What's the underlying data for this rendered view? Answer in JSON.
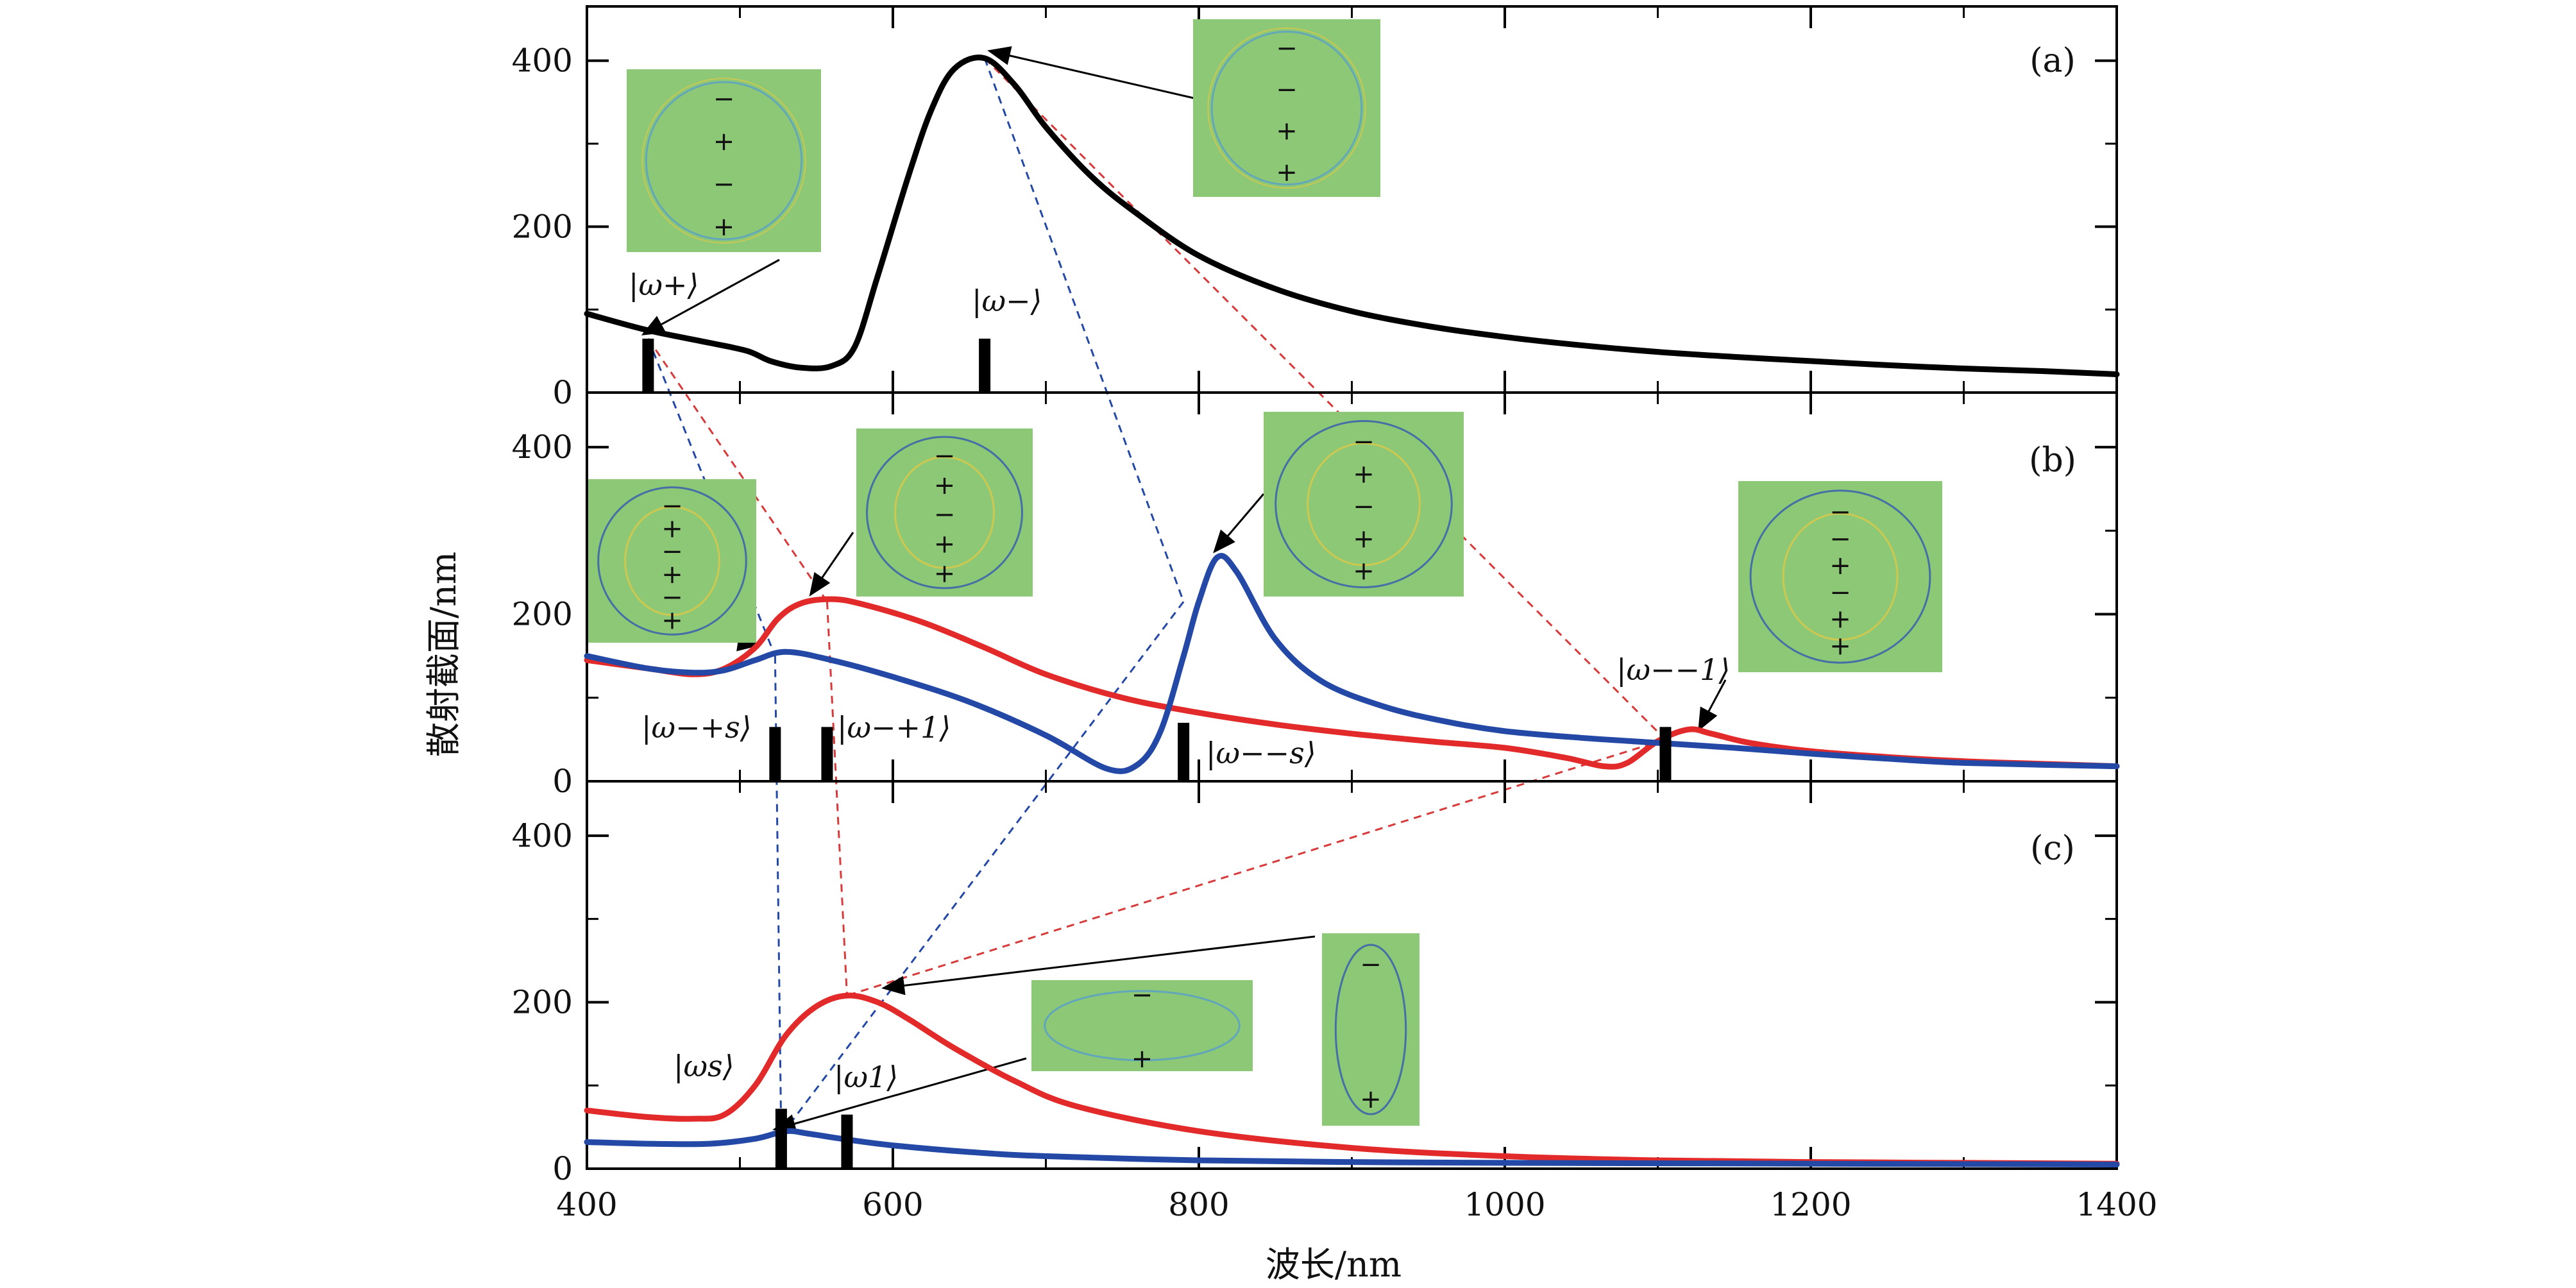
{
  "chart_data": {
    "type": "line",
    "xlabel": "波长/nm",
    "ylabel": "散射截面/nm",
    "xlim": [
      400,
      1400
    ],
    "ylim": [
      0,
      450
    ],
    "x_ticks": [
      "400",
      "600",
      "800",
      "1000",
      "1200",
      "1400"
    ],
    "y_ticks": [
      "0",
      "200",
      "400"
    ],
    "colors": {
      "black": "#000000",
      "red": "#e32a2a",
      "blue": "#2348a6",
      "inset": "#8cc876"
    },
    "panels": [
      {
        "label": "(a)",
        "series": [
          {
            "color": "black",
            "points": [
              [
                400,
                95
              ],
              [
                440,
                75
              ],
              [
                480,
                60
              ],
              [
                505,
                50
              ],
              [
                520,
                38
              ],
              [
                540,
                30
              ],
              [
                560,
                32
              ],
              [
                575,
                55
              ],
              [
                590,
                140
              ],
              [
                610,
                260
              ],
              [
                625,
                340
              ],
              [
                640,
                390
              ],
              [
                660,
                403
              ],
              [
                680,
                370
              ],
              [
                700,
                320
              ],
              [
                730,
                260
              ],
              [
                760,
                215
              ],
              [
                800,
                165
              ],
              [
                850,
                125
              ],
              [
                900,
                98
              ],
              [
                950,
                80
              ],
              [
                1000,
                67
              ],
              [
                1050,
                57
              ],
              [
                1100,
                49
              ],
              [
                1150,
                43
              ],
              [
                1200,
                38
              ],
              [
                1250,
                33
              ],
              [
                1300,
                29
              ],
              [
                1350,
                26
              ],
              [
                1400,
                22
              ]
            ]
          }
        ],
        "states": [
          {
            "label": "|ω+⟩",
            "x": 440,
            "height": 65
          },
          {
            "label": "|ω−⟩",
            "x": 660,
            "height": 65
          }
        ],
        "insets": [
          {
            "charges": [
              "−",
              "+",
              "−",
              "+"
            ]
          },
          {
            "charges": [
              "−",
              "−",
              "+",
              "+"
            ]
          }
        ]
      },
      {
        "label": "(b)",
        "series": [
          {
            "color": "red",
            "points": [
              [
                400,
                145
              ],
              [
                440,
                135
              ],
              [
                470,
                128
              ],
              [
                490,
                135
              ],
              [
                510,
                160
              ],
              [
                525,
                195
              ],
              [
                540,
                213
              ],
              [
                560,
                218
              ],
              [
                580,
                212
              ],
              [
                620,
                190
              ],
              [
                660,
                160
              ],
              [
                700,
                128
              ],
              [
                750,
                100
              ],
              [
                800,
                82
              ],
              [
                850,
                68
              ],
              [
                900,
                57
              ],
              [
                950,
                48
              ],
              [
                1000,
                40
              ],
              [
                1040,
                28
              ],
              [
                1065,
                18
              ],
              [
                1080,
                22
              ],
              [
                1100,
                48
              ],
              [
                1120,
                62
              ],
              [
                1135,
                57
              ],
              [
                1160,
                46
              ],
              [
                1200,
                36
              ],
              [
                1250,
                29
              ],
              [
                1300,
                24
              ],
              [
                1350,
                21
              ],
              [
                1400,
                18
              ]
            ]
          },
          {
            "color": "blue",
            "points": [
              [
                400,
                150
              ],
              [
                440,
                135
              ],
              [
                470,
                130
              ],
              [
                490,
                133
              ],
              [
                510,
                145
              ],
              [
                530,
                155
              ],
              [
                560,
                145
              ],
              [
                600,
                125
              ],
              [
                650,
                95
              ],
              [
                700,
                55
              ],
              [
                740,
                15
              ],
              [
                760,
                20
              ],
              [
                775,
                60
              ],
              [
                790,
                150
              ],
              [
                800,
                215
              ],
              [
                812,
                268
              ],
              [
                825,
                250
              ],
              [
                850,
                170
              ],
              [
                880,
                120
              ],
              [
                920,
                90
              ],
              [
                960,
                72
              ],
              [
                1000,
                60
              ],
              [
                1050,
                52
              ],
              [
                1100,
                46
              ],
              [
                1150,
                40
              ],
              [
                1200,
                33
              ],
              [
                1250,
                27
              ],
              [
                1300,
                22
              ],
              [
                1400,
                18
              ]
            ]
          }
        ],
        "states": [
          {
            "label": "|ω−+s⟩",
            "x": 523,
            "height": 65
          },
          {
            "label": "|ω−+1⟩",
            "x": 557,
            "height": 65
          },
          {
            "label": "|ω−−s⟩",
            "x": 790,
            "height": 70
          },
          {
            "label": "|ω−−1⟩",
            "x": 1105,
            "height": 65
          }
        ],
        "insets": [
          {
            "charges": [
              "−",
              "+",
              "−",
              "+",
              "−",
              "+"
            ]
          },
          {
            "charges": [
              "−",
              "+",
              "−",
              "+",
              "+"
            ]
          },
          {
            "charges": [
              "−",
              "+",
              "−",
              "+",
              "+"
            ]
          },
          {
            "charges": [
              "−",
              "−",
              "+",
              "−",
              "+",
              "+"
            ]
          }
        ]
      },
      {
        "label": "(c)",
        "series": [
          {
            "color": "red",
            "points": [
              [
                400,
                70
              ],
              [
                440,
                62
              ],
              [
                470,
                60
              ],
              [
                490,
                65
              ],
              [
                510,
                100
              ],
              [
                530,
                160
              ],
              [
                550,
                195
              ],
              [
                570,
                208
              ],
              [
                590,
                200
              ],
              [
                610,
                180
              ],
              [
                640,
                145
              ],
              [
                680,
                105
              ],
              [
                720,
                75
              ],
              [
                800,
                45
              ],
              [
                900,
                25
              ],
              [
                1000,
                15
              ],
              [
                1100,
                10
              ],
              [
                1200,
                8
              ],
              [
                1300,
                7
              ],
              [
                1400,
                6
              ]
            ]
          },
          {
            "color": "blue",
            "points": [
              [
                400,
                32
              ],
              [
                440,
                30
              ],
              [
                480,
                30
              ],
              [
                510,
                36
              ],
              [
                530,
                45
              ],
              [
                545,
                42
              ],
              [
                570,
                35
              ],
              [
                600,
                28
              ],
              [
                650,
                20
              ],
              [
                700,
                15
              ],
              [
                800,
                10
              ],
              [
                900,
                8
              ],
              [
                1000,
                7
              ],
              [
                1200,
                6
              ],
              [
                1400,
                5
              ]
            ]
          }
        ],
        "states": [
          {
            "label": "|ωs⟩",
            "x": 527,
            "height": 72
          },
          {
            "label": "|ω1⟩",
            "x": 570,
            "height": 65
          }
        ],
        "insets": [
          {
            "charges": [
              "−",
              "+"
            ]
          },
          {
            "charges": [
              "−",
              "+"
            ]
          }
        ]
      }
    ]
  }
}
